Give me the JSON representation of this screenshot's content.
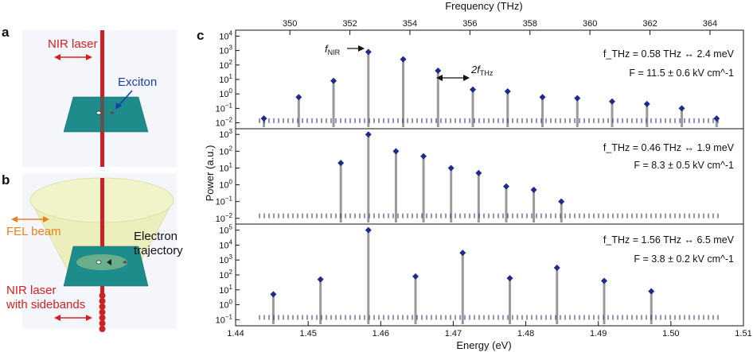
{
  "panel_labels": {
    "a": "a",
    "b": "b",
    "c": "c"
  },
  "panel_a": {
    "laser_label": "NIR laser",
    "exciton_label": "Exciton"
  },
  "panel_b": {
    "fel_label": "FEL beam",
    "electron_label_1": "Electron",
    "electron_label_2": "trajectory",
    "sideband_label_1": "NIR laser",
    "sideband_label_2": "with sidebands"
  },
  "panel_c": {
    "top_axis_label": "Frequency (THz)",
    "top_ticks": [
      "350",
      "352",
      "354",
      "356",
      "358",
      "360",
      "362",
      "364"
    ],
    "bottom_axis_label": "Energy (eV)",
    "bottom_ticks": [
      "1.44",
      "1.45",
      "1.46",
      "1.47",
      "1.48",
      "1.49",
      "1.50",
      "1.51"
    ],
    "ylabel": "Power (a.u.)",
    "arrow_fnir": "f",
    "arrow_fnir_sub": "NIR",
    "arrow_2fthz": "2f",
    "arrow_2fthz_sub": "THz"
  },
  "chart_data": [
    {
      "type": "line",
      "panel": "c-top",
      "xlabel": "Energy (eV)",
      "ylabel": "Power (a.u.)",
      "xlim": [
        1.44,
        1.51
      ],
      "ylim": [
        0.005,
        10000
      ],
      "log_y": true,
      "y_ticks": [
        "10^4",
        "10^3",
        "10^2",
        "10^1",
        "10^0",
        "10^-1",
        "10^-2"
      ],
      "annotation_1": "f_THz = 0.58 THz ↔ 2.4 meV",
      "annotation_2": "F = 11.5 ± 0.6 kV cm^-1",
      "nir_energy": 1.4583,
      "sideband_spacing_ev": 0.0048,
      "x": [
        1.4439,
        1.4487,
        1.4535,
        1.4583,
        1.4631,
        1.4679,
        1.4727,
        1.4775,
        1.4823,
        1.4871,
        1.4919,
        1.4967,
        1.5015,
        1.5063
      ],
      "y": [
        0.02,
        0.6,
        8,
        800,
        250,
        40,
        2,
        1.5,
        0.6,
        0.5,
        0.3,
        0.2,
        0.1,
        0.02
      ]
    },
    {
      "type": "line",
      "panel": "c-middle",
      "xlabel": "Energy (eV)",
      "ylabel": "Power (a.u.)",
      "xlim": [
        1.44,
        1.51
      ],
      "ylim": [
        0.005,
        5000
      ],
      "log_y": true,
      "y_ticks": [
        "10^3",
        "10^2",
        "10^1",
        "10^0",
        "10^-1",
        "10^-2"
      ],
      "annotation_1": "f_THz = 0.46 THz ↔ 1.9 meV",
      "annotation_2": "F = 8.3 ± 0.5 kV cm^-1",
      "x": [
        1.4545,
        1.4583,
        1.4621,
        1.4659,
        1.4697,
        1.4735,
        1.4773,
        1.4811,
        1.4849
      ],
      "y": [
        20,
        3000,
        100,
        50,
        10,
        5,
        0.8,
        0.5,
        0.1
      ]
    },
    {
      "type": "line",
      "panel": "c-bottom",
      "xlabel": "Energy (eV)",
      "ylabel": "Power (a.u.)",
      "xlim": [
        1.44,
        1.51
      ],
      "ylim": [
        0.1,
        500000
      ],
      "log_y": true,
      "y_ticks": [
        "10^5",
        "10^4",
        "10^3",
        "10^2",
        "10^1",
        "10^0",
        "10^-1"
      ],
      "annotation_1": "f_THz = 1.56 THz ↔ 6.5 meV",
      "annotation_2": "F = 3.8 ± 0.2 kV cm^-1",
      "x": [
        1.4452,
        1.4517,
        1.4583,
        1.4648,
        1.4713,
        1.4778,
        1.4843,
        1.4908,
        1.4973
      ],
      "y": [
        5,
        50,
        200000,
        80,
        3000,
        60,
        300,
        40,
        8
      ]
    }
  ]
}
